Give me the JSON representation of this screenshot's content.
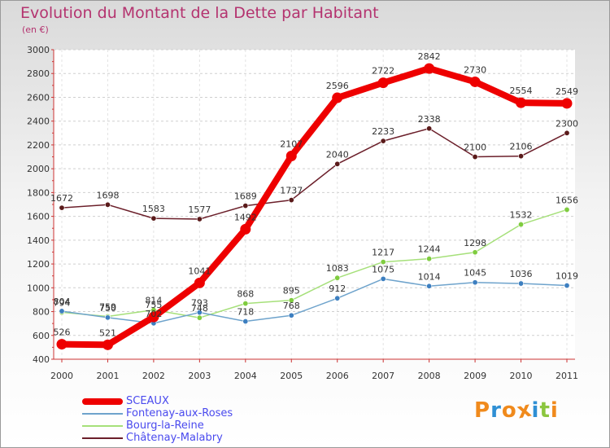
{
  "header": {
    "title": "Evolution du Montant de la Dette par Habitant",
    "subtitle": "(en €)"
  },
  "brand": {
    "letters": [
      "P",
      "r",
      "o",
      "x",
      "i",
      "t",
      "i"
    ],
    "colors": [
      "#f08a1c",
      "#2f8fd4",
      "#f08a1c",
      "#f08a1c",
      "#2f8fd4",
      "#8cc63f",
      "#f08a1c"
    ]
  },
  "chart_data": {
    "type": "line",
    "x": [
      "2000",
      "2001",
      "2002",
      "2003",
      "2004",
      "2005",
      "2006",
      "2007",
      "2008",
      "2009",
      "2010",
      "2011"
    ],
    "ylim": [
      400,
      3000
    ],
    "yticks": [
      400,
      600,
      800,
      1000,
      1200,
      1400,
      1600,
      1800,
      2000,
      2200,
      2400,
      2600,
      2800,
      3000
    ],
    "grid": "horizontal dashed",
    "legend_position": "bottom-left",
    "series": [
      {
        "name": "Châtenay-Malabry",
        "color": "#6b1f2a",
        "point_color": "#5a1a1a",
        "values": [
          1672,
          1698,
          1583,
          1577,
          1689,
          1737,
          2040,
          2233,
          2338,
          2100,
          2106,
          2300
        ]
      },
      {
        "name": "Bourg-la-Reine",
        "color": "#a6e07a",
        "point_color": "#7fcc3f",
        "values": [
          794,
          759,
          814,
          748,
          868,
          895,
          1083,
          1217,
          1244,
          1298,
          1532,
          1656
        ]
      },
      {
        "name": "Fontenay-aux-Roses",
        "color": "#6ea3cc",
        "point_color": "#3d7fc0",
        "values": [
          804,
          750,
          702,
          793,
          718,
          768,
          912,
          1075,
          1014,
          1045,
          1036,
          1019
        ]
      },
      {
        "name": "SCEAUX",
        "color": "#ee0000",
        "point_color": "#ee0000",
        "values": [
          526,
          521,
          755,
          1041,
          1492,
          2107,
          2596,
          2722,
          2842,
          2730,
          2554,
          2549
        ]
      }
    ],
    "labels": [
      {
        "series": 0,
        "text": [
          "1672",
          "1698",
          "1583",
          "1577",
          "1689",
          "1737",
          "2040",
          "2233",
          "2338",
          "2100",
          "2106",
          "2300"
        ]
      },
      {
        "series": 1,
        "text": [
          "794",
          "759",
          "814",
          "748",
          "868",
          "895",
          "1083",
          "1217",
          "1244",
          "1298",
          "1532",
          "1656"
        ]
      },
      {
        "series": 2,
        "text": [
          "804",
          "750",
          "702",
          "793",
          "718",
          "768",
          "912",
          "1075",
          "1014",
          "1045",
          "1036",
          "1019"
        ]
      },
      {
        "series": 3,
        "text": [
          "526",
          "521",
          "755",
          "1041",
          "1492",
          "2107",
          "2596",
          "2722",
          "2842",
          "2730",
          "2554",
          "2549"
        ]
      }
    ]
  },
  "legend": [
    {
      "name": "SCEAUX",
      "color": "#ee0000",
      "text_color": "#4a4aee"
    },
    {
      "name": "Fontenay-aux-Roses",
      "color": "#6ea3cc",
      "text_color": "#4a4aee"
    },
    {
      "name": "Bourg-la-Reine",
      "color": "#a6e07a",
      "text_color": "#4a4aee"
    },
    {
      "name": "Châtenay-Malabry",
      "color": "#6b1f2a",
      "text_color": "#4a4aee"
    }
  ]
}
